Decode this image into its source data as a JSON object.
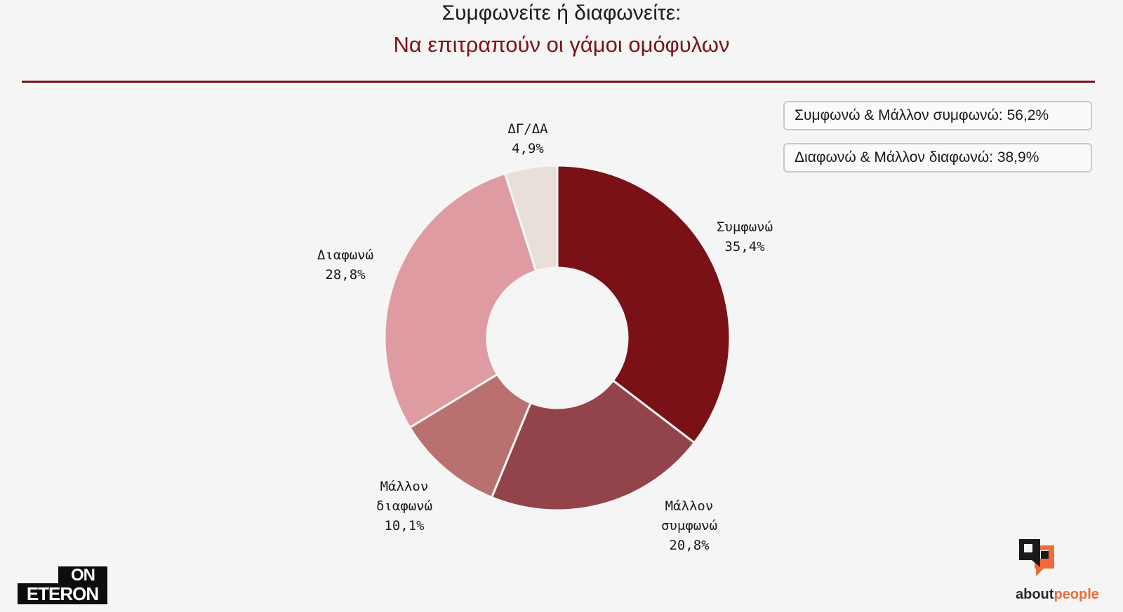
{
  "header": {
    "title": "Συμφωνείτε ή διαφωνείτε:",
    "subtitle": "Να επιτραπούν οι γάμοι ομόφυλων"
  },
  "summary": {
    "agree_total": "Συμφωνώ & Μάλλον συμφωνώ: 56,2%",
    "disagree_total": "Διαφωνώ & Μάλλον διαφωνώ: 38,9%"
  },
  "chart_data": {
    "type": "pie",
    "donut": true,
    "title": "Συμφωνείτε ή διαφωνείτε:",
    "subtitle": "Να επιτραπούν οι γάμοι ομόφυλων",
    "slices": [
      {
        "label_lines": [
          "Συμφωνώ"
        ],
        "value": 35.4,
        "value_label": "35,4%",
        "color": "#7a1117"
      },
      {
        "label_lines": [
          "Μάλλον",
          "συμφωνώ"
        ],
        "value": 20.8,
        "value_label": "20,8%",
        "color": "#93444a"
      },
      {
        "label_lines": [
          "Μάλλον",
          "διαφωνώ"
        ],
        "value": 10.1,
        "value_label": "10,1%",
        "color": "#b8716e"
      },
      {
        "label_lines": [
          "Διαφωνώ"
        ],
        "value": 28.8,
        "value_label": "28,8%",
        "color": "#de9ca2"
      },
      {
        "label_lines": [
          "ΔΓ/ΔΑ"
        ],
        "value": 4.9,
        "value_label": "4,9%",
        "color": "#e8e0d8"
      }
    ]
  },
  "logos": {
    "left_top": "ON",
    "left_bottom": "ETERON",
    "right_main": "about",
    "right_accent": "people"
  },
  "colors": {
    "accent": "#7c111b",
    "brand_orange": "#ef6a3b"
  }
}
